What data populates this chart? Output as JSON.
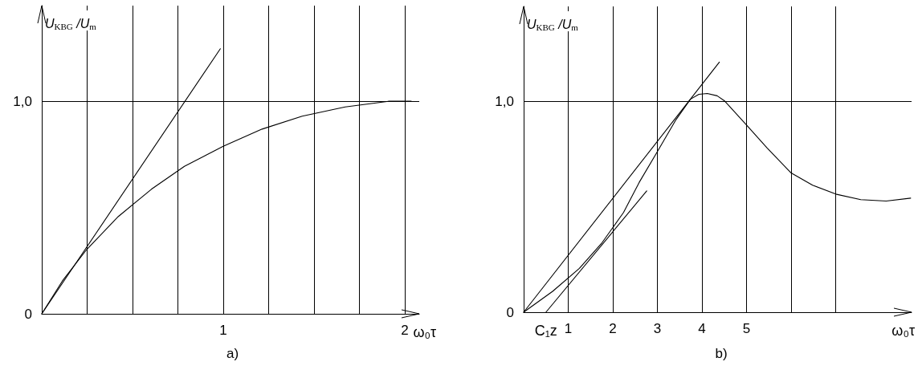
{
  "chart_data": [
    {
      "type": "line",
      "title": "a)",
      "xlabel": "ω₀τ",
      "ylabel": "U$_{KBG}$ /U$_{m}$",
      "xlim": [
        0,
        2.08
      ],
      "ylim": [
        0,
        1.45
      ],
      "xticks": [
        {
          "value": 0,
          "label": null
        },
        {
          "value": 0.25,
          "label": null
        },
        {
          "value": 0.5,
          "label": null
        },
        {
          "value": 0.75,
          "label": null
        },
        1,
        {
          "value": 1.25,
          "label": null
        },
        {
          "value": 1.5,
          "label": null
        },
        {
          "value": 1.75,
          "label": null
        },
        2
      ],
      "yticks": [
        0,
        {
          "value": 1,
          "label": "1,0"
        }
      ],
      "grid": true,
      "marker": "none",
      "line_style": "solid",
      "series": [
        {
          "color": "#000000",
          "x": [
            0,
            0.114,
            0.248,
            0.422,
            0.604,
            0.786,
            1.0,
            1.214,
            1.435,
            1.672,
            1.91,
            2.036
          ],
          "values": [
            0,
            0.155,
            0.303,
            0.458,
            0.586,
            0.694,
            0.788,
            0.869,
            0.93,
            0.973,
            1.0,
            1.0
          ]
        },
        {
          "color": "#000000",
          "x": [
            0,
            0.984
          ],
          "values": [
            0,
            1.247
          ]
        }
      ]
    },
    {
      "type": "line",
      "title": "b)",
      "xlabel": "ω₀τ",
      "ylabel": "U$_{KBG}$ /U$_{m}$",
      "xlim": [
        0,
        8.7
      ],
      "ylim": [
        0,
        1.45
      ],
      "xticks": [
        {
          "value": 0,
          "label": null
        },
        1,
        2,
        3,
        4,
        5,
        {
          "value": 6,
          "label": null
        },
        {
          "value": 7,
          "label": null
        }
      ],
      "yticks": [
        0,
        {
          "value": 1,
          "label": "1,0"
        }
      ],
      "grid": true,
      "marker": "none",
      "line_style": "solid",
      "annotations": [
        {
          "text": "C₁z",
          "x": 0.5,
          "y": 0
        }
      ],
      "series": [
        {
          "color": "#000000",
          "x": [
            0,
            0.65,
            1.25,
            1.76,
            2.24,
            2.59,
            2.99,
            3.42,
            3.74,
            3.93,
            4.12,
            4.34,
            4.5,
            5.0,
            5.46,
            6.0,
            6.48,
            7.0,
            7.56,
            8.13,
            8.68
          ],
          "values": [
            0,
            0.099,
            0.208,
            0.33,
            0.473,
            0.615,
            0.758,
            0.914,
            1.01,
            1.033,
            1.037,
            1.026,
            1.003,
            0.887,
            0.779,
            0.66,
            0.602,
            0.56,
            0.534,
            0.527,
            0.541
          ]
        },
        {
          "color": "#000000",
          "x": [
            0,
            4.39
          ],
          "values": [
            0,
            1.186
          ]
        },
        {
          "color": "#000000",
          "x": [
            0.5,
            2.76
          ],
          "values": [
            0,
            0.575
          ]
        }
      ]
    }
  ]
}
